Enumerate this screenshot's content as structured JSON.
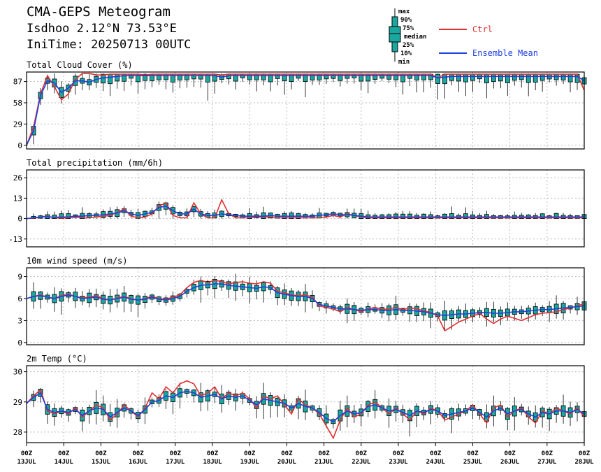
{
  "header": {
    "title": "CMA-GEPS Meteogram",
    "location": "Isdhoo 2.12°N 73.53°E",
    "init_time": "IniTime: 20250713 00UTC"
  },
  "legend": {
    "box_labels": [
      "max",
      "90%",
      "75%",
      "median",
      "25%",
      "10%",
      "min"
    ],
    "ctrl": "Ctrl",
    "mean": "Ensemble Mean",
    "colors": {
      "ctrl": "#e03030",
      "mean": "#1f3fe0",
      "box": "#1aa7a0"
    }
  },
  "x_axis": {
    "ticks_top": [
      "00Z",
      "00Z",
      "00Z",
      "00Z",
      "00Z",
      "00Z",
      "00Z",
      "00Z",
      "00Z",
      "00Z",
      "00Z",
      "00Z",
      "00Z",
      "00Z",
      "00Z",
      "00Z"
    ],
    "ticks_bottom": [
      "13JUL",
      "14JUL",
      "15JUL",
      "16JUL",
      "17JUL",
      "18JUL",
      "19JUL",
      "20JUL",
      "21JUL",
      "22JUL",
      "23JUL",
      "24JUL",
      "25JUL",
      "26JUL",
      "27JUL",
      "28JUL"
    ]
  },
  "chart_data": [
    {
      "type": "line",
      "title": "Total Cloud Cover (%)",
      "ylim": [
        -5,
        100
      ],
      "yticks": [
        0,
        29,
        58,
        87
      ],
      "x_unit": "hours since 2025-07-13 00UTC (6-hourly steps)",
      "series": [
        {
          "name": "Ctrl",
          "values": [
            0,
            25,
            70,
            95,
            80,
            62,
            70,
            90,
            98,
            98,
            96,
            96,
            97,
            97,
            97,
            97,
            97,
            96,
            97,
            97,
            97,
            97,
            97,
            97,
            97,
            97,
            97,
            97,
            96,
            97,
            97,
            97,
            97,
            97,
            97,
            97,
            97,
            97,
            97,
            97,
            97,
            97,
            97,
            97,
            97,
            97,
            97,
            97,
            97,
            97,
            97,
            97,
            97,
            97,
            97,
            97,
            97,
            97,
            97,
            92,
            97,
            97,
            97,
            97,
            97,
            97,
            97,
            97,
            97,
            97,
            97,
            97,
            97,
            97,
            97,
            97,
            97,
            97,
            97,
            97,
            75
          ]
        },
        {
          "name": "Ensemble Mean",
          "values": [
            0,
            20,
            68,
            88,
            85,
            72,
            78,
            88,
            88,
            86,
            90,
            92,
            93,
            94,
            95,
            95,
            95,
            95,
            95,
            95,
            95,
            95,
            95,
            95,
            95,
            95,
            95,
            95,
            93,
            95,
            95,
            95,
            95,
            95,
            95,
            95,
            95,
            95,
            95,
            95,
            95,
            95,
            95,
            95,
            95,
            95,
            95,
            95,
            95,
            95,
            95,
            95,
            95,
            95,
            95,
            95,
            95,
            95,
            95,
            92,
            93,
            94,
            94,
            94,
            94,
            94,
            94,
            94,
            94,
            94,
            94,
            94,
            94,
            94,
            94,
            94,
            94,
            94,
            94,
            94,
            88
          ]
        }
      ]
    },
    {
      "type": "line",
      "title": "Total precipitation (mm/6h)",
      "ylim": [
        -18,
        31
      ],
      "yticks": [
        -13,
        0,
        13,
        26
      ],
      "series": [
        {
          "name": "Ctrl",
          "values": [
            0,
            0.3,
            1,
            1.5,
            0.5,
            0.3,
            0.5,
            1,
            0.5,
            0.5,
            1,
            1.5,
            2,
            4,
            6,
            1.5,
            0.5,
            1,
            3,
            8,
            10,
            2,
            0.5,
            0.5,
            10,
            3,
            0.5,
            0.5,
            12,
            3,
            0.5,
            0.5,
            0.5,
            1,
            1,
            1,
            0.5,
            0.5,
            0.5,
            0.5,
            0.5,
            0.5,
            0.5,
            1,
            2,
            1,
            3,
            2,
            1,
            0.5,
            0.5,
            0.5,
            0.5,
            0.5,
            0.5,
            0.5,
            0.5,
            0.5,
            0.5,
            0.5,
            0.5,
            0.5,
            0.5,
            0.5,
            0.5,
            0.5,
            0.5,
            0.5,
            0.5,
            0.5,
            0.5,
            0.5,
            0.5,
            0.5,
            0.5,
            0.5,
            0.5,
            0.5,
            0.5,
            0.5,
            0.5
          ]
        },
        {
          "name": "Ensemble Mean",
          "values": [
            0,
            0.5,
            1,
            1.2,
            0.8,
            1,
            1,
            1.5,
            1.5,
            2,
            2,
            2.5,
            3,
            3.5,
            5,
            3,
            2,
            3,
            4,
            7,
            8,
            5,
            3,
            3,
            6,
            3,
            2,
            2,
            3,
            2.5,
            2,
            1.5,
            1.5,
            1.5,
            1.5,
            2,
            1.5,
            1.5,
            1.5,
            1.5,
            1.5,
            1.5,
            2,
            2.5,
            3,
            2.5,
            2.5,
            2,
            1.5,
            1,
            1,
            1,
            1,
            1,
            1,
            1,
            1,
            1,
            1,
            1,
            1,
            1,
            1,
            1,
            1,
            1,
            1,
            1,
            1,
            1,
            1,
            1,
            1,
            1,
            1,
            1,
            1,
            1,
            1,
            1,
            1
          ]
        }
      ]
    },
    {
      "type": "line",
      "title": "10m wind speed (m/s)",
      "ylim": [
        -0.3,
        10.2
      ],
      "yticks": [
        0,
        3,
        6,
        9
      ],
      "series": [
        {
          "name": "Ctrl",
          "values": [
            6.0,
            6.3,
            6.5,
            6.2,
            6.0,
            6.4,
            6.6,
            6.3,
            6.1,
            6.2,
            6.4,
            6.0,
            5.8,
            6.1,
            6.3,
            6.0,
            5.8,
            6.0,
            6.3,
            6.0,
            5.9,
            6.2,
            6.5,
            7.5,
            8.2,
            8.5,
            8.2,
            8.5,
            8.3,
            8.0,
            8.2,
            8.3,
            8.1,
            8.0,
            8.3,
            8.1,
            7.0,
            6.8,
            6.5,
            6.4,
            6.5,
            6.2,
            5.0,
            4.8,
            4.6,
            4.2,
            4.8,
            4.5,
            4.2,
            4.6,
            4.8,
            4.5,
            4.6,
            4.8,
            4.5,
            4.7,
            4.6,
            4.3,
            4.1,
            3.6,
            1.6,
            2.2,
            2.8,
            3.2,
            3.6,
            4.0,
            3.2,
            2.6,
            3.2,
            3.6,
            3.3,
            3.0,
            3.4,
            3.8,
            4.0,
            4.1,
            4.2,
            4.5,
            4.7,
            5.0,
            5.3
          ]
        },
        {
          "name": "Ensemble Mean",
          "values": [
            6.0,
            6.3,
            6.4,
            6.2,
            6.0,
            6.3,
            6.5,
            6.3,
            6.0,
            6.1,
            6.2,
            5.9,
            5.8,
            6.0,
            6.2,
            5.9,
            5.8,
            5.9,
            6.2,
            5.9,
            5.8,
            6.0,
            6.3,
            7.0,
            7.5,
            7.8,
            7.9,
            8.0,
            8.0,
            7.8,
            7.7,
            7.6,
            7.5,
            7.4,
            7.6,
            7.5,
            6.8,
            6.6,
            6.4,
            6.3,
            6.3,
            6.0,
            5.2,
            5.0,
            4.8,
            4.6,
            4.6,
            4.5,
            4.4,
            4.5,
            4.5,
            4.4,
            4.4,
            4.5,
            4.4,
            4.4,
            4.3,
            4.2,
            4.0,
            3.8,
            3.7,
            3.8,
            3.9,
            3.9,
            4.0,
            4.1,
            4.1,
            4.0,
            4.0,
            4.1,
            4.2,
            4.2,
            4.3,
            4.4,
            4.5,
            4.5,
            4.6,
            4.7,
            4.8,
            4.9,
            5.0
          ]
        }
      ]
    },
    {
      "type": "line",
      "title": "2m Temp (°C)",
      "ylim": [
        27.65,
        30.2
      ],
      "yticks": [
        28,
        29,
        30
      ],
      "series": [
        {
          "name": "Ctrl",
          "values": [
            28.95,
            29.2,
            29.4,
            28.7,
            28.6,
            28.7,
            28.6,
            28.8,
            28.5,
            28.7,
            28.9,
            28.8,
            28.4,
            28.6,
            28.9,
            28.7,
            28.5,
            28.8,
            29.3,
            29.1,
            29.5,
            29.3,
            29.6,
            29.7,
            29.6,
            29.2,
            29.3,
            29.5,
            29.1,
            29.3,
            29.2,
            29.3,
            29.1,
            28.8,
            29.2,
            29.1,
            29.2,
            28.9,
            28.6,
            29.1,
            28.9,
            28.8,
            28.6,
            28.2,
            27.8,
            28.4,
            28.8,
            28.5,
            28.6,
            28.9,
            29.0,
            28.8,
            28.6,
            28.8,
            28.6,
            28.4,
            28.7,
            28.6,
            28.8,
            28.7,
            28.4,
            28.5,
            28.6,
            28.7,
            28.9,
            28.6,
            28.3,
            28.8,
            28.9,
            28.5,
            28.7,
            28.8,
            28.5,
            28.3,
            28.7,
            28.6,
            28.8,
            28.7,
            28.6,
            28.8,
            28.5
          ]
        },
        {
          "name": "Ensemble Mean",
          "values": [
            28.95,
            29.15,
            29.3,
            28.75,
            28.65,
            28.7,
            28.65,
            28.75,
            28.55,
            28.7,
            28.8,
            28.75,
            28.5,
            28.65,
            28.8,
            28.7,
            28.55,
            28.75,
            29.0,
            29.05,
            29.2,
            29.15,
            29.3,
            29.35,
            29.3,
            29.15,
            29.2,
            29.25,
            29.1,
            29.2,
            29.15,
            29.2,
            29.05,
            28.9,
            29.1,
            29.05,
            29.0,
            28.95,
            28.8,
            28.95,
            28.85,
            28.8,
            28.65,
            28.45,
            28.35,
            28.55,
            28.7,
            28.6,
            28.65,
            28.85,
            28.9,
            28.8,
            28.7,
            28.75,
            28.65,
            28.55,
            28.7,
            28.65,
            28.75,
            28.7,
            28.55,
            28.6,
            28.65,
            28.7,
            28.8,
            28.65,
            28.5,
            28.7,
            28.8,
            28.6,
            28.7,
            28.75,
            28.6,
            28.5,
            28.65,
            28.6,
            28.7,
            28.7,
            28.65,
            28.75,
            28.6
          ]
        }
      ]
    }
  ]
}
